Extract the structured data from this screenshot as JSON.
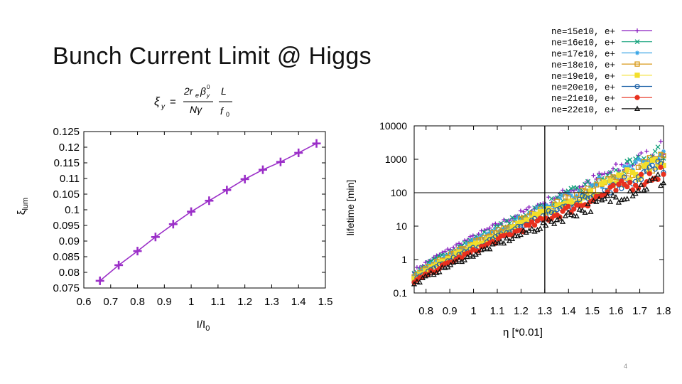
{
  "slide": {
    "title": "Bunch Current Limit @ Higgs",
    "number": "4"
  },
  "formula": {
    "lhs": "ξ",
    "lhs_sub": "y",
    "equals": "=",
    "num_a": "2r",
    "num_a_sub": "e",
    "num_b": "β",
    "num_b_sup": "0",
    "num_b_sub": "y",
    "den": "Nγ",
    "frac2_num": "L",
    "frac2_den": "f",
    "frac2_den_sub": "0"
  },
  "chart_data": [
    {
      "type": "line",
      "xlabel": "I/I",
      "xlabel_sub": "0",
      "ylabel": "ξ",
      "ylabel_sub": "lum",
      "xlim": [
        0.6,
        1.5
      ],
      "ylim": [
        0.075,
        0.125
      ],
      "xticks": [
        "0.6",
        "0.7",
        "0.8",
        "0.9",
        "1",
        "1.1",
        "1.2",
        "1.3",
        "1.4",
        "1.5"
      ],
      "yticks": [
        "0.075",
        "0.08",
        "0.085",
        "0.09",
        "0.095",
        "0.1",
        "0.105",
        "0.11",
        "0.115",
        "0.12",
        "0.125"
      ],
      "series": [
        {
          "color": "#9b2fc8",
          "marker": "plus",
          "x": [
            0.66,
            0.73,
            0.8,
            0.867,
            0.933,
            1.0,
            1.067,
            1.133,
            1.2,
            1.267,
            1.333,
            1.4,
            1.467
          ],
          "y": [
            0.0773,
            0.0823,
            0.0868,
            0.0913,
            0.0954,
            0.0994,
            0.1029,
            0.1063,
            0.1098,
            0.1128,
            0.1153,
            0.1182,
            0.1212
          ]
        }
      ]
    },
    {
      "type": "scatter",
      "xlabel": "η [*0.01]",
      "ylabel": "lifetime [min]",
      "ylog": true,
      "xlim": [
        0.75,
        1.8
      ],
      "ylim": [
        0.1,
        10000
      ],
      "xticks": [
        "0.8",
        "0.9",
        "1",
        "1.1",
        "1.2",
        "1.3",
        "1.4",
        "1.5",
        "1.6",
        "1.7",
        "1.8"
      ],
      "yticks": [
        "0.1",
        "1",
        "10",
        "100",
        "1000",
        "10000"
      ],
      "reference_lines": {
        "x": 1.3,
        "y": 100
      },
      "legend_position": "top-right",
      "series": [
        {
          "name": "ne=15e10, e+",
          "color": "#8b1fc0",
          "marker": "plus",
          "y_start": 0.45,
          "y_end": 2000
        },
        {
          "name": "ne=16e10, e+",
          "color": "#11a07a",
          "marker": "x",
          "y_start": 0.38,
          "y_end": 1600
        },
        {
          "name": "ne=17e10, e+",
          "color": "#3aa6e6",
          "marker": "star",
          "y_start": 0.33,
          "y_end": 1300
        },
        {
          "name": "ne=18e10, e+",
          "color": "#d89a1a",
          "marker": "square",
          "y_start": 0.29,
          "y_end": 1050
        },
        {
          "name": "ne=19e10, e+",
          "color": "#f3df2b",
          "marker": "filled-square",
          "y_start": 0.25,
          "y_end": 850
        },
        {
          "name": "ne=20e10, e+",
          "color": "#1f63a8",
          "marker": "circle",
          "y_start": 0.22,
          "y_end": 650
        },
        {
          "name": "ne=21e10, e+",
          "color": "#e8301f",
          "marker": "filled-circle",
          "y_start": 0.2,
          "y_end": 450
        },
        {
          "name": "ne=22e10, e+",
          "color": "#111111",
          "marker": "triangle",
          "y_start": 0.18,
          "y_end": 260
        }
      ]
    }
  ]
}
